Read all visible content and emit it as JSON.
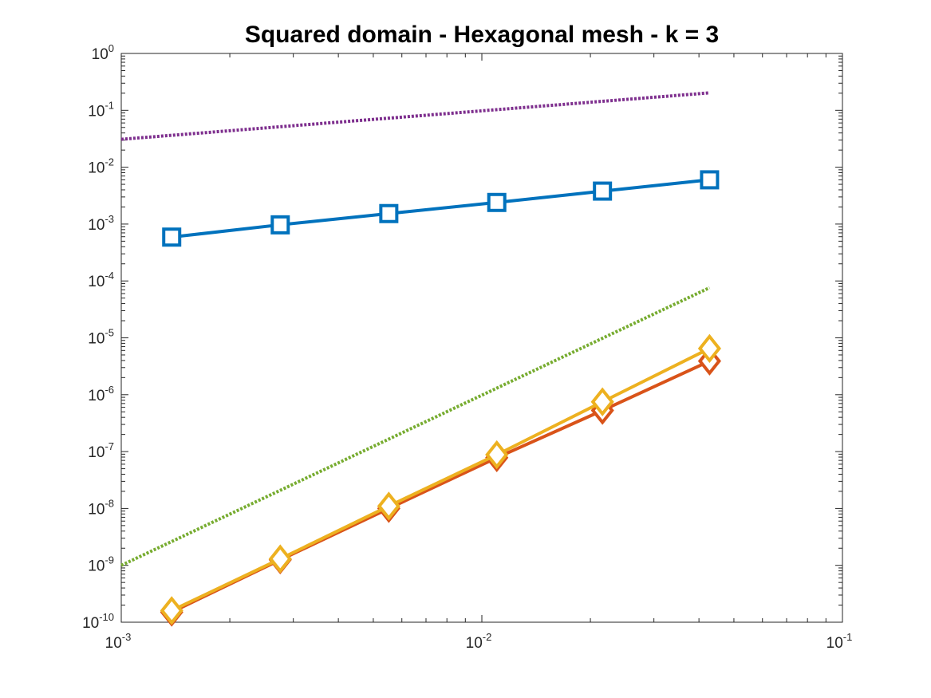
{
  "chart_data": {
    "type": "line",
    "title": "Squared domain - Hexagonal mesh - k = 3",
    "xscale": "log",
    "yscale": "log",
    "xlim": [
      0.001,
      0.1
    ],
    "ylim": [
      1e-10,
      1
    ],
    "x_ticks": [
      {
        "value": 0.001,
        "base": "10",
        "exp": "-3"
      },
      {
        "value": 0.01,
        "base": "10",
        "exp": "-2"
      },
      {
        "value": 0.1,
        "base": "10",
        "exp": "-1"
      }
    ],
    "y_ticks": [
      {
        "value": 1,
        "base": "10",
        "exp": "0"
      },
      {
        "value": 0.1,
        "base": "10",
        "exp": "-1"
      },
      {
        "value": 0.01,
        "base": "10",
        "exp": "-2"
      },
      {
        "value": 0.001,
        "base": "10",
        "exp": "-3"
      },
      {
        "value": 0.0001,
        "base": "10",
        "exp": "-4"
      },
      {
        "value": 1e-05,
        "base": "10",
        "exp": "-5"
      },
      {
        "value": 1e-06,
        "base": "10",
        "exp": "-6"
      },
      {
        "value": 1e-07,
        "base": "10",
        "exp": "-7"
      },
      {
        "value": 1e-08,
        "base": "10",
        "exp": "-8"
      },
      {
        "value": 1e-09,
        "base": "10",
        "exp": "-9"
      },
      {
        "value": 1e-10,
        "base": "10",
        "exp": "-10"
      }
    ],
    "grid": false,
    "legend": "none",
    "series": [
      {
        "color": "#0072BD",
        "style": "solid",
        "marker": "square",
        "x": [
          0.00138,
          0.00276,
          0.00552,
          0.011,
          0.0216,
          0.0428
        ],
        "y": [
          0.00059,
          0.00097,
          0.00153,
          0.0024,
          0.0038,
          0.006
        ]
      },
      {
        "color": "#D95319",
        "style": "solid",
        "marker": "diamond",
        "x": [
          0.00138,
          0.00276,
          0.00552,
          0.011,
          0.0216,
          0.0428
        ],
        "y": [
          1.5e-10,
          1.25e-09,
          1e-08,
          7.8e-08,
          5.3e-07,
          3.9e-06
        ]
      },
      {
        "color": "#EDB120",
        "style": "solid",
        "marker": "diamond",
        "x": [
          0.00138,
          0.00276,
          0.00552,
          0.011,
          0.0216,
          0.0428
        ],
        "y": [
          1.6e-10,
          1.3e-09,
          1.1e-08,
          8.8e-08,
          7.5e-07,
          6.5e-06
        ]
      },
      {
        "color": "#7E2F8E",
        "style": "dotted",
        "marker": "none",
        "x": [
          0.001,
          0.0428
        ],
        "y": [
          0.031,
          0.203
        ]
      },
      {
        "color": "#77AC30",
        "style": "dotted",
        "marker": "none",
        "x": [
          0.001,
          0.0428
        ],
        "y": [
          1e-09,
          7.6e-05
        ]
      }
    ]
  }
}
